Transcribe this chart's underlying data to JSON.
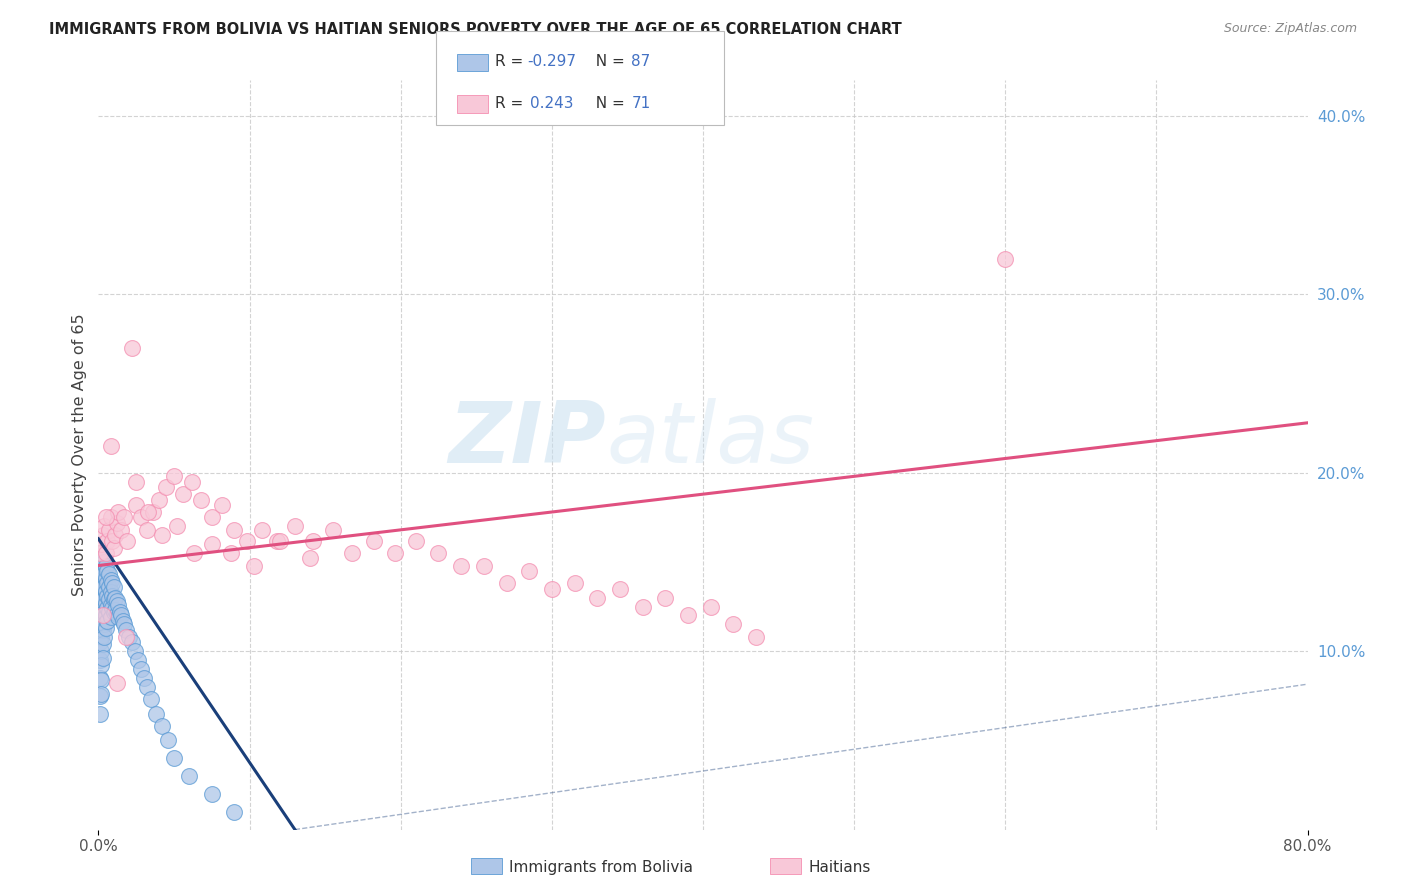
{
  "title": "IMMIGRANTS FROM BOLIVIA VS HAITIAN SENIORS POVERTY OVER THE AGE OF 65 CORRELATION CHART",
  "source": "Source: ZipAtlas.com",
  "ylabel": "Seniors Poverty Over the Age of 65",
  "x_min": 0.0,
  "x_max": 0.8,
  "y_min": 0.0,
  "y_max": 0.42,
  "y_ticks_right": [
    0.1,
    0.2,
    0.3,
    0.4
  ],
  "y_tick_labels_right": [
    "10.0%",
    "20.0%",
    "30.0%",
    "40.0%"
  ],
  "blue_color": "#5b9bd5",
  "pink_color": "#f48fb1",
  "blue_fill": "#aec6e8",
  "pink_fill": "#f8c8d8",
  "trend_blue_color": "#1a3f7a",
  "trend_pink_color": "#e05080",
  "watermark_zip": "ZIP",
  "watermark_atlas": "atlas",
  "background_color": "#ffffff",
  "grid_color": "#c8c8c8",
  "title_color": "#222222",
  "axis_label_color": "#444444",
  "right_axis_color": "#5b9bd5",
  "bolivia_x": [
    0.001,
    0.001,
    0.001,
    0.001,
    0.001,
    0.001,
    0.001,
    0.001,
    0.001,
    0.001,
    0.002,
    0.002,
    0.002,
    0.002,
    0.002,
    0.002,
    0.002,
    0.002,
    0.002,
    0.002,
    0.002,
    0.003,
    0.003,
    0.003,
    0.003,
    0.003,
    0.003,
    0.003,
    0.003,
    0.004,
    0.004,
    0.004,
    0.004,
    0.004,
    0.004,
    0.004,
    0.005,
    0.005,
    0.005,
    0.005,
    0.005,
    0.005,
    0.006,
    0.006,
    0.006,
    0.006,
    0.006,
    0.007,
    0.007,
    0.007,
    0.007,
    0.008,
    0.008,
    0.008,
    0.008,
    0.009,
    0.009,
    0.009,
    0.01,
    0.01,
    0.01,
    0.011,
    0.011,
    0.012,
    0.012,
    0.013,
    0.013,
    0.014,
    0.015,
    0.016,
    0.017,
    0.018,
    0.02,
    0.022,
    0.024,
    0.026,
    0.028,
    0.03,
    0.032,
    0.035,
    0.038,
    0.042,
    0.046,
    0.05,
    0.06,
    0.075,
    0.09
  ],
  "bolivia_y": [
    0.155,
    0.145,
    0.135,
    0.125,
    0.115,
    0.105,
    0.095,
    0.085,
    0.075,
    0.065,
    0.155,
    0.148,
    0.14,
    0.132,
    0.124,
    0.116,
    0.108,
    0.1,
    0.092,
    0.084,
    0.076,
    0.152,
    0.144,
    0.136,
    0.128,
    0.12,
    0.112,
    0.104,
    0.096,
    0.15,
    0.143,
    0.136,
    0.129,
    0.122,
    0.115,
    0.108,
    0.148,
    0.141,
    0.134,
    0.127,
    0.12,
    0.113,
    0.145,
    0.138,
    0.131,
    0.124,
    0.117,
    0.143,
    0.136,
    0.129,
    0.122,
    0.14,
    0.133,
    0.126,
    0.119,
    0.138,
    0.131,
    0.124,
    0.136,
    0.129,
    0.122,
    0.13,
    0.123,
    0.128,
    0.121,
    0.126,
    0.119,
    0.122,
    0.12,
    0.117,
    0.115,
    0.112,
    0.108,
    0.105,
    0.1,
    0.095,
    0.09,
    0.085,
    0.08,
    0.073,
    0.065,
    0.058,
    0.05,
    0.04,
    0.03,
    0.02,
    0.01
  ],
  "haitian_x": [
    0.001,
    0.002,
    0.003,
    0.004,
    0.005,
    0.006,
    0.007,
    0.008,
    0.009,
    0.01,
    0.011,
    0.012,
    0.013,
    0.015,
    0.017,
    0.019,
    0.022,
    0.025,
    0.028,
    0.032,
    0.036,
    0.04,
    0.045,
    0.05,
    0.056,
    0.062,
    0.068,
    0.075,
    0.082,
    0.09,
    0.098,
    0.108,
    0.118,
    0.13,
    0.142,
    0.155,
    0.168,
    0.182,
    0.196,
    0.21,
    0.225,
    0.24,
    0.255,
    0.27,
    0.285,
    0.3,
    0.315,
    0.33,
    0.345,
    0.36,
    0.375,
    0.39,
    0.405,
    0.42,
    0.435,
    0.003,
    0.005,
    0.008,
    0.012,
    0.018,
    0.025,
    0.033,
    0.042,
    0.052,
    0.063,
    0.075,
    0.088,
    0.103,
    0.12,
    0.14,
    0.6
  ],
  "haitian_y": [
    0.155,
    0.16,
    0.165,
    0.17,
    0.155,
    0.162,
    0.168,
    0.175,
    0.162,
    0.158,
    0.165,
    0.172,
    0.178,
    0.168,
    0.175,
    0.162,
    0.27,
    0.182,
    0.175,
    0.168,
    0.178,
    0.185,
    0.192,
    0.198,
    0.188,
    0.195,
    0.185,
    0.175,
    0.182,
    0.168,
    0.162,
    0.168,
    0.162,
    0.17,
    0.162,
    0.168,
    0.155,
    0.162,
    0.155,
    0.162,
    0.155,
    0.148,
    0.148,
    0.138,
    0.145,
    0.135,
    0.138,
    0.13,
    0.135,
    0.125,
    0.13,
    0.12,
    0.125,
    0.115,
    0.108,
    0.12,
    0.175,
    0.215,
    0.082,
    0.108,
    0.195,
    0.178,
    0.165,
    0.17,
    0.155,
    0.16,
    0.155,
    0.148,
    0.162,
    0.152,
    0.32
  ],
  "trend_blue_x0": 0.0,
  "trend_blue_x1": 0.13,
  "trend_blue_y0": 0.163,
  "trend_blue_y1": 0.0,
  "trend_pink_x0": 0.0,
  "trend_pink_x1": 0.8,
  "trend_pink_y0": 0.148,
  "trend_pink_y1": 0.228
}
